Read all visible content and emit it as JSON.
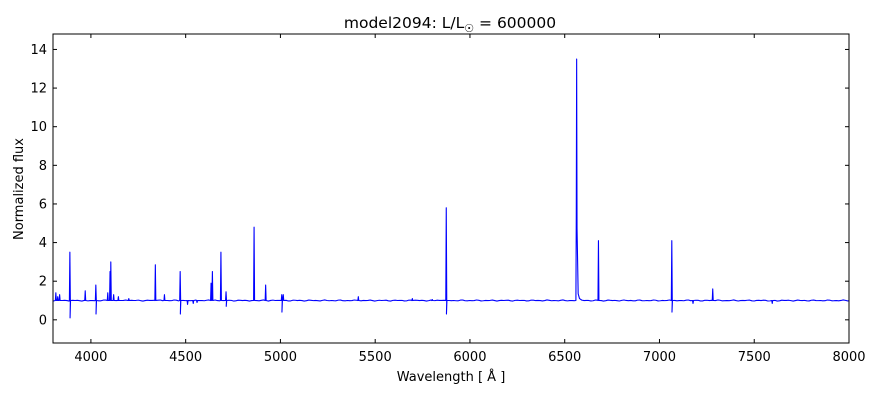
{
  "chart_data": {
    "type": "line",
    "title": "model2094: L/L",
    "title_symbol": "☉",
    "title_value": " = 600000",
    "xlabel": "Wavelength [ Å ]",
    "ylabel": "Normalized flux",
    "xlim": [
      3800,
      8000
    ],
    "ylim": [
      -1.2,
      14.8
    ],
    "xticks": [
      4000,
      4500,
      5000,
      5500,
      6000,
      6500,
      7000,
      7500,
      8000
    ],
    "yticks": [
      0,
      2,
      4,
      6,
      8,
      10,
      12,
      14
    ],
    "grid": false,
    "legend": "none",
    "series": [
      {
        "color": "#0000ff",
        "continuum": 1.0,
        "features": [
          {
            "x": 3815,
            "y": 1.4
          },
          {
            "x": 3825,
            "y": 1.2
          },
          {
            "x": 3835,
            "y": 1.3
          },
          {
            "x": 3889,
            "y": 3.5
          },
          {
            "x": 3890,
            "y": 0.1
          },
          {
            "x": 3970,
            "y": 1.5
          },
          {
            "x": 4026,
            "y": 1.8
          },
          {
            "x": 4027,
            "y": 0.3
          },
          {
            "x": 4089,
            "y": 1.4
          },
          {
            "x": 4101,
            "y": 2.5
          },
          {
            "x": 4105,
            "y": 3.0
          },
          {
            "x": 4120,
            "y": 1.3
          },
          {
            "x": 4145,
            "y": 1.2
          },
          {
            "x": 4200,
            "y": 1.1
          },
          {
            "x": 4340,
            "y": 2.85
          },
          {
            "x": 4388,
            "y": 1.3
          },
          {
            "x": 4471,
            "y": 2.5
          },
          {
            "x": 4472,
            "y": 0.3
          },
          {
            "x": 4510,
            "y": 0.8
          },
          {
            "x": 4540,
            "y": 0.85
          },
          {
            "x": 4560,
            "y": 0.9
          },
          {
            "x": 4634,
            "y": 1.9
          },
          {
            "x": 4641,
            "y": 2.5
          },
          {
            "x": 4686,
            "y": 3.5
          },
          {
            "x": 4713,
            "y": 1.45
          },
          {
            "x": 4714,
            "y": 0.7
          },
          {
            "x": 4861,
            "y": 4.8
          },
          {
            "x": 4922,
            "y": 1.8
          },
          {
            "x": 5007,
            "y": 1.3
          },
          {
            "x": 5008,
            "y": 0.4
          },
          {
            "x": 5015,
            "y": 1.3
          },
          {
            "x": 5411,
            "y": 1.2
          },
          {
            "x": 5696,
            "y": 1.1
          },
          {
            "x": 5801,
            "y": 1.05
          },
          {
            "x": 5875,
            "y": 5.8
          },
          {
            "x": 5876,
            "y": 0.3
          },
          {
            "x": 6563,
            "y": 13.5
          },
          {
            "x": 6678,
            "y": 4.1
          },
          {
            "x": 7065,
            "y": 4.1
          },
          {
            "x": 7066,
            "y": 0.4
          },
          {
            "x": 7177,
            "y": 0.85
          },
          {
            "x": 7281,
            "y": 1.6
          },
          {
            "x": 7595,
            "y": 0.85
          }
        ]
      }
    ]
  }
}
